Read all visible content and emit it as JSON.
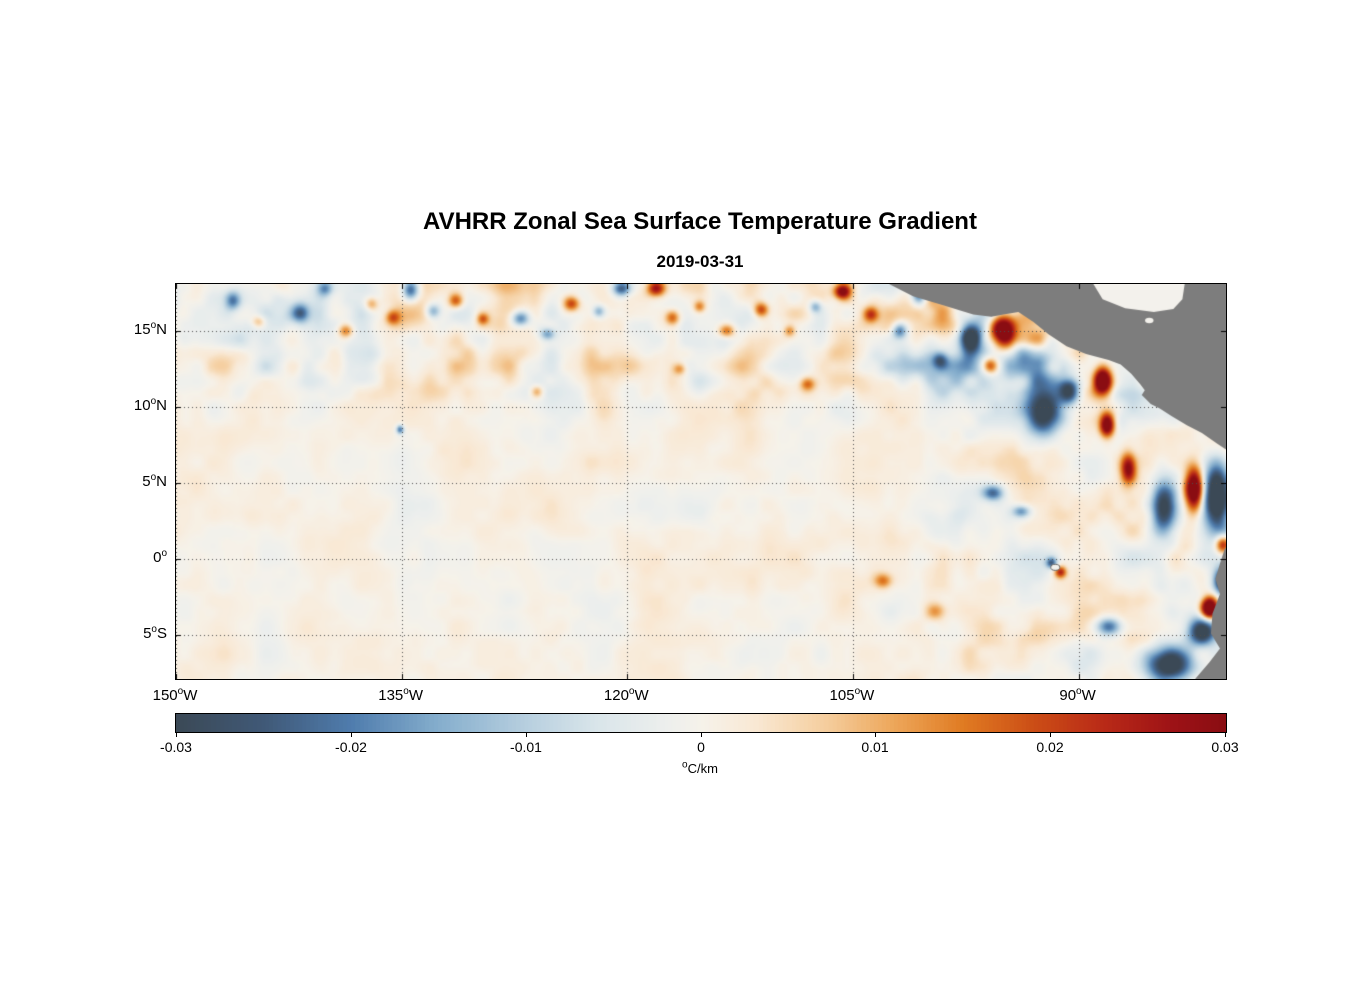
{
  "page": {
    "background": "#ffffff"
  },
  "chart_data": {
    "type": "heatmap",
    "title": "AVHRR Zonal Sea Surface Temperature Gradient",
    "subtitle": "2019-03-31",
    "degree_symbol": "o",
    "axes": {
      "xlim": [
        -150,
        -80.2
      ],
      "ylim": [
        -7.9,
        18.1
      ],
      "x_ticks": [
        {
          "num": "150",
          "hemi": "W",
          "lon": -150
        },
        {
          "num": "135",
          "hemi": "W",
          "lon": -135
        },
        {
          "num": "120",
          "hemi": "W",
          "lon": -120
        },
        {
          "num": "105",
          "hemi": "W",
          "lon": -105
        },
        {
          "num": "90",
          "hemi": "W",
          "lon": -90
        }
      ],
      "y_ticks": [
        {
          "num": "15",
          "hemi": "N",
          "lat": 15
        },
        {
          "num": "10",
          "hemi": "N",
          "lat": 10
        },
        {
          "num": "5",
          "hemi": "N",
          "lat": 5
        },
        {
          "num": "0",
          "hemi": "",
          "lat": 0
        },
        {
          "num": "5",
          "hemi": "S",
          "lat": -5
        }
      ],
      "grid": true,
      "grid_color": "#4d4d4d",
      "box_color": "#000000"
    },
    "colorbar": {
      "min": -0.03,
      "max": 0.03,
      "tick_labels": [
        "-0.03",
        "-0.02",
        "-0.01",
        "0",
        "0.01",
        "0.02",
        "0.03"
      ],
      "units_text": "C/km"
    },
    "colormap_stops": [
      [
        -0.03,
        "#3b4956"
      ],
      [
        -0.025,
        "#405977"
      ],
      [
        -0.02,
        "#4f7cad"
      ],
      [
        -0.015,
        "#85aecd"
      ],
      [
        -0.01,
        "#b7cfdf"
      ],
      [
        -0.006,
        "#d9e5ea"
      ],
      [
        -0.002,
        "#edefed"
      ],
      [
        0.0,
        "#f6f2ea"
      ],
      [
        0.003,
        "#f9e9d5"
      ],
      [
        0.007,
        "#f5cfa0"
      ],
      [
        0.011,
        "#eda75b"
      ],
      [
        0.015,
        "#e07b22"
      ],
      [
        0.019,
        "#cc4e16"
      ],
      [
        0.023,
        "#b92a17"
      ],
      [
        0.027,
        "#9d1216"
      ],
      [
        0.03,
        "#8a0d12"
      ]
    ],
    "land": {
      "color": "#7d7d7d",
      "sea_mask_color": "#f3f1ec",
      "polygons": [
        [
          [
            -103.2,
            18.4
          ],
          [
            -101.0,
            17.3
          ],
          [
            -99.0,
            16.7
          ],
          [
            -97.0,
            16.1
          ],
          [
            -95.8,
            15.95
          ],
          [
            -95.0,
            16.1
          ],
          [
            -94.0,
            16.25
          ],
          [
            -93.0,
            15.6
          ],
          [
            -92.0,
            14.8
          ],
          [
            -90.8,
            14.0
          ],
          [
            -89.5,
            13.5
          ],
          [
            -88.0,
            13.1
          ],
          [
            -87.2,
            12.8
          ],
          [
            -86.5,
            12.2
          ],
          [
            -85.9,
            11.5
          ],
          [
            -85.6,
            11.1
          ],
          [
            -85.8,
            10.8
          ],
          [
            -85.2,
            10.2
          ],
          [
            -84.6,
            9.9
          ],
          [
            -83.8,
            9.4
          ],
          [
            -82.8,
            8.8
          ],
          [
            -81.8,
            8.3
          ],
          [
            -80.8,
            7.6
          ],
          [
            -79.9,
            7.0
          ],
          [
            -79.7,
            7.0
          ],
          [
            -79.7,
            18.4
          ]
        ],
        [
          [
            -79.7,
            1.6
          ],
          [
            -80.3,
            0.6
          ],
          [
            -80.6,
            -0.3
          ],
          [
            -80.9,
            -1.3
          ],
          [
            -80.6,
            -2.3
          ],
          [
            -81.1,
            -3.6
          ],
          [
            -81.2,
            -4.9
          ],
          [
            -80.6,
            -5.9
          ],
          [
            -81.3,
            -6.8
          ],
          [
            -82.6,
            -8.3
          ],
          [
            -79.7,
            -8.3
          ]
        ]
      ],
      "sea_masks": [
        [
          [
            -89.2,
            18.4
          ],
          [
            -88.4,
            17.1
          ],
          [
            -86.9,
            16.5
          ],
          [
            -85.0,
            16.25
          ],
          [
            -83.7,
            16.45
          ],
          [
            -83.1,
            17.1
          ],
          [
            -82.9,
            18.4
          ]
        ]
      ],
      "lakes": [
        {
          "cx": -85.3,
          "cy": 15.7,
          "rx": 0.28,
          "ry": 0.18
        }
      ],
      "islands": [
        {
          "cx": -91.55,
          "cy": -0.55,
          "rx": 0.3,
          "ry": 0.2
        }
      ]
    },
    "field": {
      "bias": 0.0006,
      "noise": {
        "seed": 11,
        "octaves": [
          [
            3.2,
            0.5
          ],
          [
            1.6,
            0.3
          ],
          [
            0.9,
            0.2
          ]
        ],
        "base_amp": 0.0048,
        "itcz_factor": 1.6,
        "coastal_factor": 1.0
      },
      "blobs": [
        [
          -146.2,
          17.0,
          0.5,
          0.6,
          -0.018
        ],
        [
          -144.5,
          15.6,
          0.45,
          0.4,
          0.012
        ],
        [
          -141.7,
          16.2,
          0.6,
          0.6,
          -0.02
        ],
        [
          -140.1,
          17.8,
          0.5,
          0.5,
          -0.016
        ],
        [
          -138.7,
          15.0,
          0.5,
          0.45,
          0.016
        ],
        [
          -137.0,
          16.8,
          0.45,
          0.45,
          0.014
        ],
        [
          -135.6,
          15.9,
          0.5,
          0.5,
          0.018
        ],
        [
          -134.4,
          17.7,
          0.55,
          0.7,
          -0.028
        ],
        [
          -132.9,
          16.3,
          0.5,
          0.5,
          -0.018
        ],
        [
          -131.4,
          17.0,
          0.5,
          0.5,
          0.02
        ],
        [
          -129.6,
          15.8,
          0.4,
          0.4,
          0.016
        ],
        [
          -127.1,
          15.8,
          0.6,
          0.5,
          -0.022
        ],
        [
          -125.3,
          14.8,
          0.5,
          0.4,
          -0.016
        ],
        [
          -123.7,
          16.8,
          0.55,
          0.5,
          0.022
        ],
        [
          -121.9,
          16.3,
          0.4,
          0.4,
          -0.015
        ],
        [
          -120.4,
          17.8,
          0.6,
          0.5,
          -0.028
        ],
        [
          -118.1,
          17.8,
          0.6,
          0.5,
          0.026
        ],
        [
          -117.0,
          15.9,
          0.5,
          0.5,
          0.02
        ],
        [
          -115.2,
          16.6,
          0.4,
          0.4,
          0.015
        ],
        [
          -113.4,
          15.0,
          0.55,
          0.45,
          0.018
        ],
        [
          -111.1,
          16.4,
          0.5,
          0.5,
          0.022
        ],
        [
          -109.2,
          15.0,
          0.4,
          0.4,
          0.014
        ],
        [
          -107.5,
          16.6,
          0.4,
          0.4,
          -0.014
        ],
        [
          -105.7,
          17.6,
          0.55,
          0.5,
          0.032
        ],
        [
          -103.8,
          16.1,
          0.5,
          0.5,
          0.02
        ],
        [
          -101.9,
          15.0,
          0.5,
          0.5,
          -0.02
        ],
        [
          -100.6,
          17.4,
          0.5,
          0.7,
          -0.026
        ],
        [
          -99.2,
          13.1,
          0.5,
          0.55,
          -0.018
        ],
        [
          -97.2,
          14.6,
          0.7,
          1.0,
          -0.038
        ],
        [
          -95.0,
          14.9,
          0.9,
          1.1,
          0.05
        ],
        [
          -95.9,
          12.7,
          0.5,
          0.5,
          0.02
        ],
        [
          -92.3,
          9.6,
          1.2,
          1.5,
          -0.034
        ],
        [
          -90.6,
          11.0,
          0.7,
          0.8,
          -0.03
        ],
        [
          -88.4,
          11.7,
          0.6,
          0.9,
          0.045
        ],
        [
          -88.1,
          8.8,
          0.5,
          0.8,
          0.04
        ],
        [
          -86.7,
          5.9,
          0.5,
          1.0,
          0.028
        ],
        [
          -84.3,
          3.4,
          0.9,
          1.7,
          -0.035
        ],
        [
          -82.3,
          4.6,
          0.6,
          1.4,
          0.042
        ],
        [
          -80.8,
          4.0,
          0.9,
          2.2,
          -0.046
        ],
        [
          -95.7,
          4.3,
          0.7,
          0.5,
          -0.02
        ],
        [
          -93.8,
          3.1,
          0.6,
          0.4,
          -0.018
        ],
        [
          -91.8,
          -0.3,
          0.35,
          0.35,
          -0.022
        ],
        [
          -91.2,
          -0.9,
          0.4,
          0.4,
          0.026
        ],
        [
          -88.0,
          -4.5,
          0.8,
          0.6,
          -0.025
        ],
        [
          -84.0,
          -7.0,
          1.6,
          1.2,
          -0.04
        ],
        [
          -81.8,
          -4.8,
          0.9,
          0.9,
          -0.035
        ],
        [
          -81.3,
          -3.3,
          0.55,
          0.7,
          0.05
        ],
        [
          -80.4,
          0.9,
          0.5,
          0.6,
          0.03
        ],
        [
          -80.5,
          -1.5,
          0.5,
          0.8,
          -0.03
        ],
        [
          -135.1,
          8.5,
          0.25,
          0.3,
          -0.022
        ],
        [
          -103.0,
          -1.5,
          0.6,
          0.5,
          0.015
        ],
        [
          -99.5,
          -3.5,
          0.7,
          0.6,
          0.014
        ],
        [
          -116.5,
          12.5,
          0.45,
          0.4,
          0.014
        ],
        [
          -126.0,
          11.0,
          0.4,
          0.4,
          0.012
        ],
        [
          -108.0,
          11.5,
          0.5,
          0.45,
          0.016
        ]
      ]
    }
  }
}
